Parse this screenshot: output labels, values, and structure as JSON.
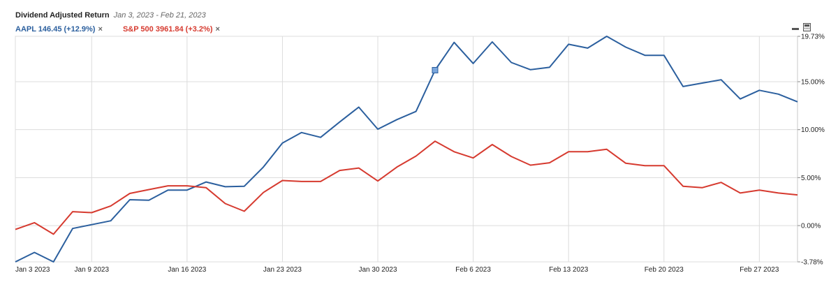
{
  "header": {
    "title": "Dividend Adjusted Return",
    "date_range": "Jan 3, 2023 - Feb 21, 2023"
  },
  "legend": [
    {
      "label": "AAPL 146.45 (+12.9%)",
      "color": "#2b5f9e"
    },
    {
      "label": "S&P 500 3961.84 (+3.2%)",
      "color": "#d63a2f"
    }
  ],
  "toolbar": {
    "minimize_icon": "minimize-icon",
    "calculator_icon": "calculator-icon"
  },
  "chart_data": {
    "type": "line",
    "y_axis_position": "right",
    "grid": true,
    "ylim": [
      -3.78,
      19.73
    ],
    "yticks": [
      {
        "value": 19.73,
        "label": "19.73%"
      },
      {
        "value": 15.0,
        "label": "15.00%"
      },
      {
        "value": 10.0,
        "label": "10.00%"
      },
      {
        "value": 5.0,
        "label": "5.00%"
      },
      {
        "value": 0.0,
        "label": "0.00%"
      },
      {
        "value": -3.78,
        "label": "-3.78%"
      }
    ],
    "xticks": [
      {
        "index": 0,
        "label": "Jan 3 2023"
      },
      {
        "index": 4,
        "label": "Jan 9 2023"
      },
      {
        "index": 9,
        "label": "Jan 16 2023"
      },
      {
        "index": 14,
        "label": "Jan 23 2023"
      },
      {
        "index": 19,
        "label": "Jan 30 2023"
      },
      {
        "index": 24,
        "label": "Feb 6 2023"
      },
      {
        "index": 29,
        "label": "Feb 13 2023"
      },
      {
        "index": 34,
        "label": "Feb 20 2023"
      },
      {
        "index": 39,
        "label": "Feb 27 2023"
      }
    ],
    "x_count": 42,
    "series": [
      {
        "name": "AAPL",
        "color": "#2b5f9e",
        "values": [
          -3.78,
          -2.8,
          -3.78,
          -0.3,
          0.1,
          0.5,
          2.7,
          2.65,
          3.7,
          3.7,
          4.55,
          4.05,
          4.1,
          6.1,
          8.6,
          9.7,
          9.2,
          10.8,
          12.35,
          10.05,
          11.05,
          11.9,
          16.2,
          19.1,
          16.9,
          19.15,
          17.0,
          16.25,
          16.5,
          18.9,
          18.5,
          19.73,
          18.6,
          17.75,
          17.75,
          14.5,
          14.85,
          15.2,
          13.2,
          14.1,
          13.7,
          12.9
        ]
      },
      {
        "name": "S&P 500",
        "color": "#d63a2f",
        "values": [
          -0.4,
          0.3,
          -0.9,
          1.45,
          1.35,
          2.05,
          3.35,
          3.75,
          4.15,
          4.15,
          3.95,
          2.3,
          1.5,
          3.45,
          4.7,
          4.6,
          4.6,
          5.75,
          6.0,
          4.65,
          6.1,
          7.25,
          8.8,
          7.7,
          7.05,
          8.45,
          7.2,
          6.3,
          6.55,
          7.7,
          7.7,
          7.95,
          6.5,
          6.25,
          6.25,
          4.1,
          3.95,
          4.5,
          3.4,
          3.7,
          3.4,
          3.2
        ]
      }
    ],
    "marker": {
      "series": "AAPL",
      "index": 22
    }
  }
}
